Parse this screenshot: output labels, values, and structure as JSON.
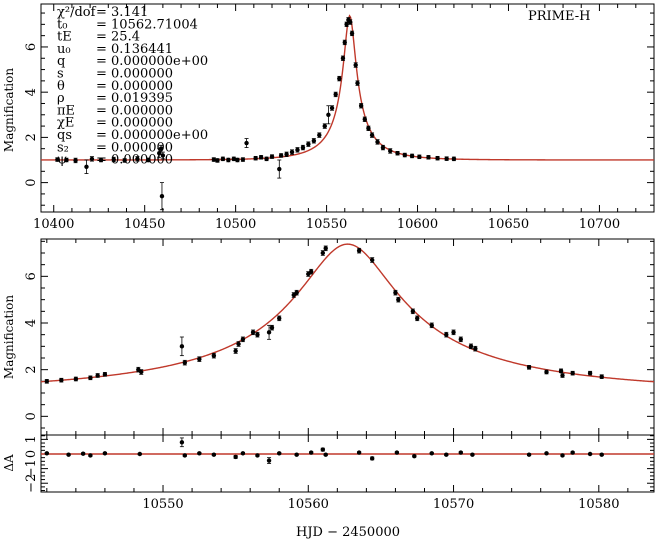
{
  "chart_data": [
    {
      "type": "scatter",
      "name": "full-light-curve",
      "dataset_label": "PRIME-H",
      "ylabel": "Magnification",
      "xlim": [
        10393,
        10730
      ],
      "ylim": [
        -1.3,
        7.9
      ],
      "xticks": [
        10400,
        10450,
        10500,
        10550,
        10600,
        10650,
        10700
      ],
      "yticks": [
        0,
        2,
        4,
        6
      ],
      "params": [
        {
          "sym": "χ²/dof",
          "val": "= 3.141"
        },
        {
          "sym": "t₀",
          "val": "= 10562.71004"
        },
        {
          "sym": "tE",
          "val": "= 25.4"
        },
        {
          "sym": "u₀",
          "val": "= 0.136441"
        },
        {
          "sym": "q",
          "val": "= 0.000000e+00"
        },
        {
          "sym": "s",
          "val": "= 0.000000"
        },
        {
          "sym": "θ",
          "val": "= 0.000000"
        },
        {
          "sym": "ρ",
          "val": "= 0.019395"
        },
        {
          "sym": "πE",
          "val": "= 0.000000"
        },
        {
          "sym": "χE",
          "val": "= 0.000000"
        },
        {
          "sym": "qs",
          "val": "= 0.000000e+00"
        },
        {
          "sym": "s₂",
          "val": "= 0.000000"
        },
        {
          "sym": "ψ",
          "val": "= 0.000000"
        }
      ],
      "points": [
        {
          "x": 10402,
          "y": 1.02,
          "e": 0.08
        },
        {
          "x": 10407,
          "y": 1.0,
          "e": 0.08
        },
        {
          "x": 10412,
          "y": 0.98,
          "e": 0.1
        },
        {
          "x": 10418,
          "y": 0.7,
          "e": 0.3
        },
        {
          "x": 10421,
          "y": 1.05,
          "e": 0.1
        },
        {
          "x": 10426,
          "y": 1.0,
          "e": 0.08
        },
        {
          "x": 10433,
          "y": 1.02,
          "e": 0.1
        },
        {
          "x": 10439,
          "y": 0.98,
          "e": 0.08
        },
        {
          "x": 10446,
          "y": 1.05,
          "e": 0.1
        },
        {
          "x": 10452,
          "y": 1.0,
          "e": 0.08
        },
        {
          "x": 10458,
          "y": 1.3,
          "e": 0.2
        },
        {
          "x": 10459,
          "y": 1.5,
          "e": 0.15
        },
        {
          "x": 10459.5,
          "y": -0.6,
          "e": 0.6
        },
        {
          "x": 10460,
          "y": 1.2,
          "e": 0.15
        },
        {
          "x": 10488,
          "y": 1.02,
          "e": 0.08
        },
        {
          "x": 10490,
          "y": 0.98,
          "e": 0.08
        },
        {
          "x": 10493,
          "y": 1.05,
          "e": 0.08
        },
        {
          "x": 10496,
          "y": 1.0,
          "e": 0.08
        },
        {
          "x": 10499,
          "y": 1.05,
          "e": 0.08
        },
        {
          "x": 10501,
          "y": 1.0,
          "e": 0.08
        },
        {
          "x": 10504,
          "y": 1.02,
          "e": 0.08
        },
        {
          "x": 10506,
          "y": 1.75,
          "e": 0.2
        },
        {
          "x": 10511,
          "y": 1.08,
          "e": 0.08
        },
        {
          "x": 10514,
          "y": 1.12,
          "e": 0.08
        },
        {
          "x": 10517,
          "y": 1.05,
          "e": 0.08
        },
        {
          "x": 10520,
          "y": 1.15,
          "e": 0.08
        },
        {
          "x": 10524,
          "y": 0.6,
          "e": 0.4
        },
        {
          "x": 10525,
          "y": 1.2,
          "e": 0.08
        },
        {
          "x": 10528,
          "y": 1.25,
          "e": 0.1
        },
        {
          "x": 10531,
          "y": 1.35,
          "e": 0.1
        },
        {
          "x": 10534,
          "y": 1.45,
          "e": 0.1
        },
        {
          "x": 10537,
          "y": 1.55,
          "e": 0.1
        },
        {
          "x": 10540,
          "y": 1.7,
          "e": 0.1
        },
        {
          "x": 10543,
          "y": 1.85,
          "e": 0.1
        },
        {
          "x": 10546,
          "y": 2.1,
          "e": 0.1
        },
        {
          "x": 10549,
          "y": 2.5,
          "e": 0.1
        },
        {
          "x": 10551,
          "y": 3.0,
          "e": 0.4
        },
        {
          "x": 10553,
          "y": 3.3,
          "e": 0.1
        },
        {
          "x": 10555,
          "y": 3.9,
          "e": 0.1
        },
        {
          "x": 10557,
          "y": 4.6,
          "e": 0.1
        },
        {
          "x": 10559,
          "y": 5.5,
          "e": 0.1
        },
        {
          "x": 10560,
          "y": 6.2,
          "e": 0.1
        },
        {
          "x": 10561,
          "y": 7.0,
          "e": 0.1
        },
        {
          "x": 10562,
          "y": 7.2,
          "e": 0.1
        },
        {
          "x": 10563,
          "y": 7.1,
          "e": 0.1
        },
        {
          "x": 10564,
          "y": 6.6,
          "e": 0.1
        },
        {
          "x": 10566,
          "y": 5.2,
          "e": 0.1
        },
        {
          "x": 10567,
          "y": 4.4,
          "e": 0.1
        },
        {
          "x": 10569,
          "y": 3.4,
          "e": 0.1
        },
        {
          "x": 10571,
          "y": 2.8,
          "e": 0.1
        },
        {
          "x": 10573,
          "y": 2.4,
          "e": 0.1
        },
        {
          "x": 10575,
          "y": 2.1,
          "e": 0.1
        },
        {
          "x": 10578,
          "y": 1.8,
          "e": 0.1
        },
        {
          "x": 10581,
          "y": 1.55,
          "e": 0.1
        },
        {
          "x": 10585,
          "y": 1.4,
          "e": 0.1
        },
        {
          "x": 10589,
          "y": 1.3,
          "e": 0.08
        },
        {
          "x": 10593,
          "y": 1.22,
          "e": 0.08
        },
        {
          "x": 10597,
          "y": 1.18,
          "e": 0.08
        },
        {
          "x": 10601,
          "y": 1.14,
          "e": 0.08
        },
        {
          "x": 10606,
          "y": 1.12,
          "e": 0.08
        },
        {
          "x": 10611,
          "y": 1.08,
          "e": 0.08
        },
        {
          "x": 10616,
          "y": 1.06,
          "e": 0.08
        },
        {
          "x": 10620,
          "y": 1.05,
          "e": 0.08
        }
      ]
    },
    {
      "type": "scatter",
      "name": "zoomed-light-curve",
      "ylabel": "Magnification",
      "xlim": [
        10541.6,
        10583.8
      ],
      "ylim": [
        -0.8,
        7.6
      ],
      "xticks": [
        10550,
        10560,
        10570,
        10580
      ],
      "yticks": [
        0,
        2,
        4,
        6
      ],
      "points": [
        {
          "x": 10542,
          "y": 1.5,
          "e": 0.08
        },
        {
          "x": 10543,
          "y": 1.55,
          "e": 0.08
        },
        {
          "x": 10544,
          "y": 1.6,
          "e": 0.08
        },
        {
          "x": 10545,
          "y": 1.65,
          "e": 0.08
        },
        {
          "x": 10545.5,
          "y": 1.75,
          "e": 0.08
        },
        {
          "x": 10546,
          "y": 1.8,
          "e": 0.08
        },
        {
          "x": 10548.3,
          "y": 2.0,
          "e": 0.1
        },
        {
          "x": 10548.5,
          "y": 1.9,
          "e": 0.1
        },
        {
          "x": 10551.3,
          "y": 3.0,
          "e": 0.4
        },
        {
          "x": 10551.5,
          "y": 2.3,
          "e": 0.1
        },
        {
          "x": 10552.5,
          "y": 2.45,
          "e": 0.1
        },
        {
          "x": 10553.5,
          "y": 2.6,
          "e": 0.1
        },
        {
          "x": 10555,
          "y": 2.8,
          "e": 0.1
        },
        {
          "x": 10555.2,
          "y": 3.1,
          "e": 0.1
        },
        {
          "x": 10555.5,
          "y": 3.3,
          "e": 0.1
        },
        {
          "x": 10556.2,
          "y": 3.6,
          "e": 0.1
        },
        {
          "x": 10556.5,
          "y": 3.5,
          "e": 0.1
        },
        {
          "x": 10557.3,
          "y": 3.6,
          "e": 0.3
        },
        {
          "x": 10557.5,
          "y": 3.8,
          "e": 0.1
        },
        {
          "x": 10558,
          "y": 4.2,
          "e": 0.1
        },
        {
          "x": 10559,
          "y": 5.2,
          "e": 0.1
        },
        {
          "x": 10559.2,
          "y": 5.3,
          "e": 0.1
        },
        {
          "x": 10560,
          "y": 6.1,
          "e": 0.1
        },
        {
          "x": 10560.2,
          "y": 6.2,
          "e": 0.1
        },
        {
          "x": 10561,
          "y": 7.0,
          "e": 0.1
        },
        {
          "x": 10561.2,
          "y": 7.2,
          "e": 0.1
        },
        {
          "x": 10563.5,
          "y": 7.1,
          "e": 0.1
        },
        {
          "x": 10564.4,
          "y": 6.7,
          "e": 0.1
        },
        {
          "x": 10566,
          "y": 5.3,
          "e": 0.1
        },
        {
          "x": 10566.2,
          "y": 5.0,
          "e": 0.1
        },
        {
          "x": 10567.2,
          "y": 4.5,
          "e": 0.1
        },
        {
          "x": 10567.5,
          "y": 4.2,
          "e": 0.1
        },
        {
          "x": 10568.5,
          "y": 3.9,
          "e": 0.1
        },
        {
          "x": 10569.5,
          "y": 3.5,
          "e": 0.1
        },
        {
          "x": 10570,
          "y": 3.6,
          "e": 0.1
        },
        {
          "x": 10570.5,
          "y": 3.3,
          "e": 0.1
        },
        {
          "x": 10571.2,
          "y": 3.0,
          "e": 0.1
        },
        {
          "x": 10571.5,
          "y": 2.9,
          "e": 0.1
        },
        {
          "x": 10575.2,
          "y": 2.1,
          "e": 0.08
        },
        {
          "x": 10576.4,
          "y": 1.9,
          "e": 0.08
        },
        {
          "x": 10577.4,
          "y": 1.95,
          "e": 0.08
        },
        {
          "x": 10577.5,
          "y": 1.75,
          "e": 0.08
        },
        {
          "x": 10578.2,
          "y": 1.85,
          "e": 0.08
        },
        {
          "x": 10579.4,
          "y": 1.85,
          "e": 0.08
        },
        {
          "x": 10580.2,
          "y": 1.7,
          "e": 0.08
        }
      ]
    },
    {
      "type": "scatter",
      "name": "residuals",
      "ylabel": "ΔA",
      "xlabel": "HJD − 2450000",
      "xlim": [
        10541.6,
        10583.8
      ],
      "ylim": [
        -2.6,
        1.3
      ],
      "xticks": [
        10550,
        10560,
        10570,
        10580
      ],
      "yticks": [
        1,
        0,
        -1,
        -2
      ],
      "ytick_labels": [
        "1",
        "0",
        "−1",
        "−2"
      ],
      "points": [
        {
          "x": 10542,
          "y": 0.05,
          "e": 0.06
        },
        {
          "x": 10543.5,
          "y": -0.05,
          "e": 0.06
        },
        {
          "x": 10544.5,
          "y": 0.02,
          "e": 0.06
        },
        {
          "x": 10545,
          "y": -0.1,
          "e": 0.06
        },
        {
          "x": 10546,
          "y": 0.05,
          "e": 0.06
        },
        {
          "x": 10548.4,
          "y": 0.0,
          "e": 0.06
        },
        {
          "x": 10551.3,
          "y": 0.8,
          "e": 0.3
        },
        {
          "x": 10551.5,
          "y": -0.1,
          "e": 0.06
        },
        {
          "x": 10552.5,
          "y": 0.05,
          "e": 0.06
        },
        {
          "x": 10553.5,
          "y": -0.05,
          "e": 0.06
        },
        {
          "x": 10555,
          "y": -0.2,
          "e": 0.1
        },
        {
          "x": 10555.5,
          "y": 0.05,
          "e": 0.06
        },
        {
          "x": 10556.5,
          "y": -0.1,
          "e": 0.06
        },
        {
          "x": 10557.3,
          "y": -0.45,
          "e": 0.2
        },
        {
          "x": 10558,
          "y": 0.05,
          "e": 0.06
        },
        {
          "x": 10559.2,
          "y": -0.05,
          "e": 0.06
        },
        {
          "x": 10560.2,
          "y": 0.1,
          "e": 0.06
        },
        {
          "x": 10561,
          "y": 0.3,
          "e": 0.1
        },
        {
          "x": 10561.2,
          "y": -0.05,
          "e": 0.06
        },
        {
          "x": 10563.5,
          "y": 0.1,
          "e": 0.06
        },
        {
          "x": 10564.4,
          "y": -0.3,
          "e": 0.1
        },
        {
          "x": 10566.1,
          "y": 0.1,
          "e": 0.06
        },
        {
          "x": 10567.3,
          "y": -0.15,
          "e": 0.06
        },
        {
          "x": 10568.5,
          "y": 0.05,
          "e": 0.06
        },
        {
          "x": 10569.5,
          "y": -0.05,
          "e": 0.06
        },
        {
          "x": 10570.5,
          "y": 0.1,
          "e": 0.06
        },
        {
          "x": 10571.3,
          "y": -0.05,
          "e": 0.06
        },
        {
          "x": 10575.2,
          "y": -0.05,
          "e": 0.06
        },
        {
          "x": 10576.4,
          "y": 0.05,
          "e": 0.06
        },
        {
          "x": 10577.5,
          "y": -0.1,
          "e": 0.06
        },
        {
          "x": 10578.2,
          "y": 0.1,
          "e": 0.06
        },
        {
          "x": 10579.4,
          "y": 0.0,
          "e": 0.06
        },
        {
          "x": 10580.2,
          "y": -0.05,
          "e": 0.06
        }
      ]
    }
  ],
  "model": {
    "t0": 10562.71004,
    "tE": 25.4,
    "u0": 0.136441,
    "rho": 0.019395,
    "color": "#c0392b"
  },
  "colors": {
    "points": "#000000",
    "model": "#c0392b"
  }
}
